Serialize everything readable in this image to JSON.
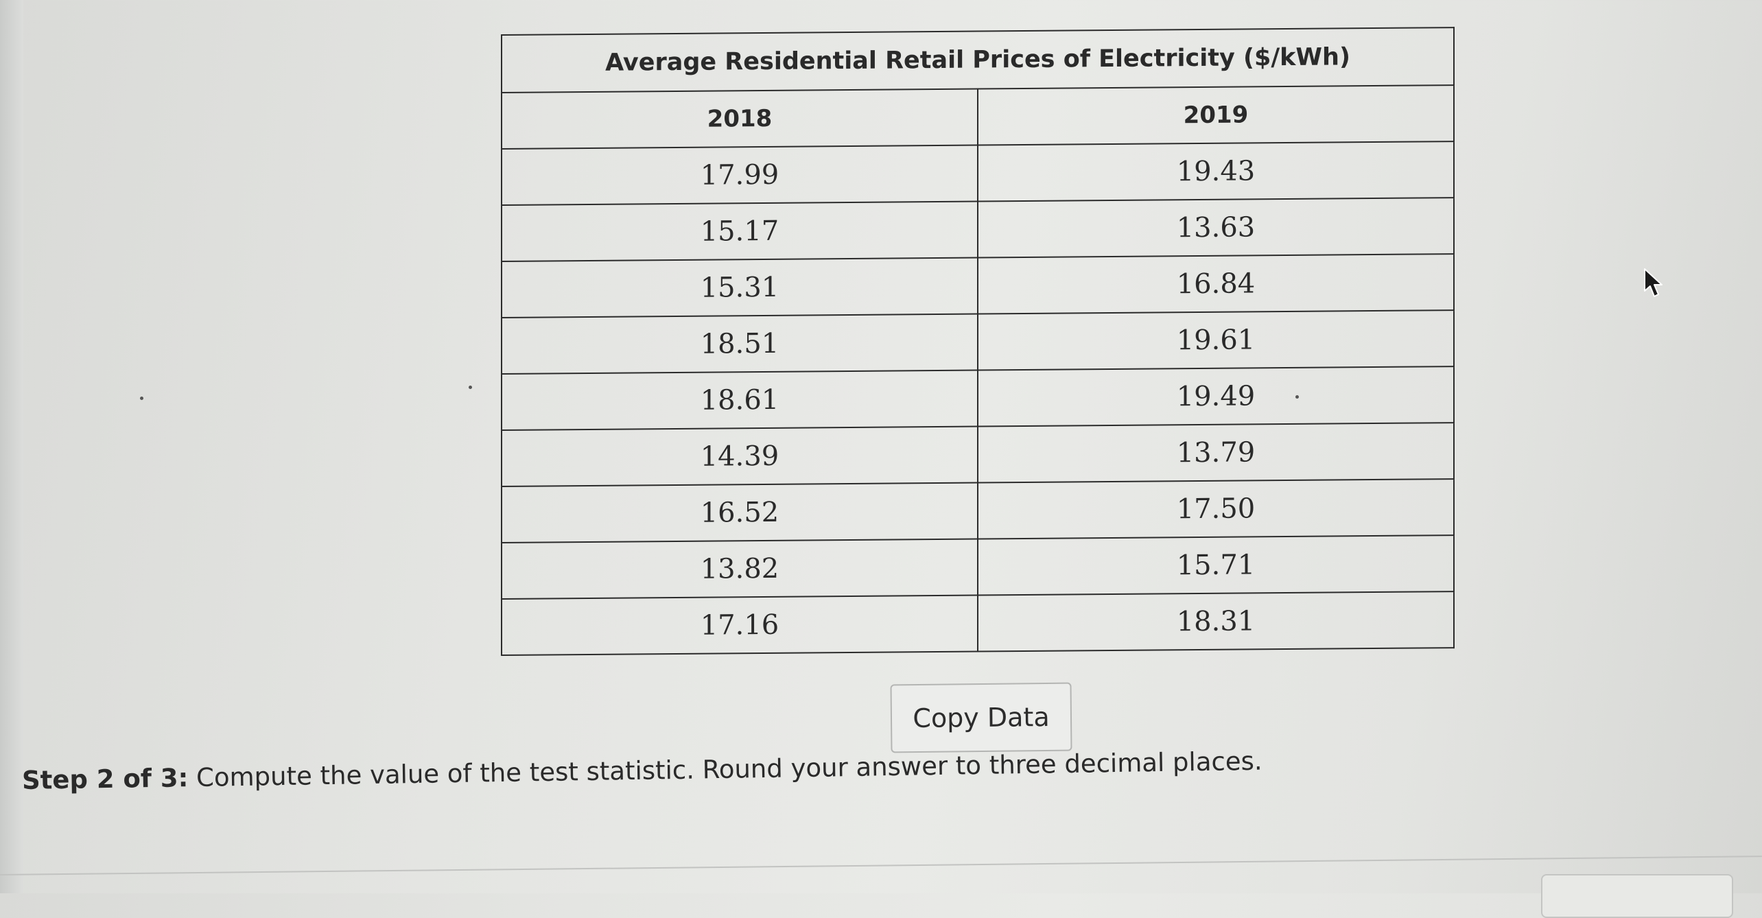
{
  "table": {
    "title": "Average Residential Retail Prices of Electricity ($/kWh)",
    "columns": [
      "2018",
      "2019"
    ],
    "rows": [
      [
        "17.99",
        "19.43"
      ],
      [
        "15.17",
        "13.63"
      ],
      [
        "15.31",
        "16.84"
      ],
      [
        "18.51",
        "19.61"
      ],
      [
        "18.61",
        "19.49"
      ],
      [
        "14.39",
        "13.79"
      ],
      [
        "16.52",
        "17.50"
      ],
      [
        "13.82",
        "15.71"
      ],
      [
        "17.16",
        "18.31"
      ]
    ]
  },
  "copy_button": {
    "label": "Copy Data"
  },
  "step": {
    "label": "Step 2 of 3:",
    "text": "Compute the value of the test statistic. Round your answer to three decimal places."
  },
  "cursor": {
    "icon": "arrow-cursor-icon"
  }
}
